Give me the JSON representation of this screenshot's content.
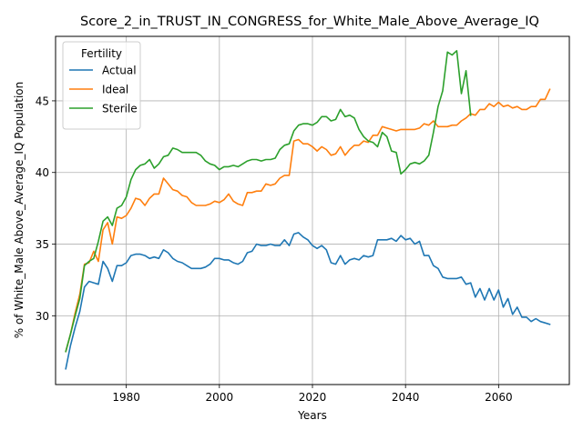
{
  "chart_data": {
    "type": "line",
    "title": "Score_2_in_TRUST_IN_CONGRESS_for_White_Male_Above_Average_IQ",
    "xlabel": "Years",
    "ylabel": "% of White_Male Above_Average_IQ Population",
    "xlim": [
      1964.8,
      2075.2
    ],
    "ylim": [
      25.2,
      49.5
    ],
    "x_ticks": [
      1980,
      2000,
      2020,
      2040,
      2060
    ],
    "y_ticks": [
      30,
      35,
      40,
      45
    ],
    "x_tick_labels": [
      "1980",
      "2000",
      "2020",
      "2040",
      "2060"
    ],
    "y_tick_labels": [
      "30",
      "35",
      "40",
      "45"
    ],
    "grid": true,
    "legend": {
      "title": "Fertility",
      "position": "top-left"
    },
    "series": [
      {
        "name": "Actual",
        "color": "#1f77b4",
        "points": [
          [
            1967,
            26.3
          ],
          [
            1968,
            27.9
          ],
          [
            1969,
            29.2
          ],
          [
            1970,
            30.3
          ],
          [
            1971,
            32.0
          ],
          [
            1972,
            32.4
          ],
          [
            1973,
            32.3
          ],
          [
            1974,
            32.2
          ],
          [
            1975,
            33.8
          ],
          [
            1976,
            33.3
          ],
          [
            1977,
            32.4
          ],
          [
            1978,
            33.5
          ],
          [
            1979,
            33.5
          ],
          [
            1980,
            33.7
          ],
          [
            1981,
            34.2
          ],
          [
            1982,
            34.3
          ],
          [
            1983,
            34.3
          ],
          [
            1984,
            34.2
          ],
          [
            1985,
            34.0
          ],
          [
            1986,
            34.1
          ],
          [
            1987,
            34.0
          ],
          [
            1988,
            34.6
          ],
          [
            1989,
            34.4
          ],
          [
            1990,
            34.0
          ],
          [
            1991,
            33.8
          ],
          [
            1992,
            33.7
          ],
          [
            1993,
            33.5
          ],
          [
            1994,
            33.3
          ],
          [
            1995,
            33.3
          ],
          [
            1996,
            33.3
          ],
          [
            1997,
            33.4
          ],
          [
            1998,
            33.6
          ],
          [
            1999,
            34.0
          ],
          [
            2000,
            34.0
          ],
          [
            2001,
            33.9
          ],
          [
            2002,
            33.9
          ],
          [
            2003,
            33.7
          ],
          [
            2004,
            33.6
          ],
          [
            2005,
            33.8
          ],
          [
            2006,
            34.4
          ],
          [
            2007,
            34.5
          ],
          [
            2008,
            35.0
          ],
          [
            2009,
            34.9
          ],
          [
            2010,
            34.9
          ],
          [
            2011,
            35.0
          ],
          [
            2012,
            34.9
          ],
          [
            2013,
            34.9
          ],
          [
            2014,
            35.3
          ],
          [
            2015,
            34.9
          ],
          [
            2016,
            35.7
          ],
          [
            2017,
            35.8
          ],
          [
            2018,
            35.5
          ],
          [
            2019,
            35.3
          ],
          [
            2020,
            34.9
          ],
          [
            2021,
            34.7
          ],
          [
            2022,
            34.9
          ],
          [
            2023,
            34.6
          ],
          [
            2024,
            33.7
          ],
          [
            2025,
            33.6
          ],
          [
            2026,
            34.2
          ],
          [
            2027,
            33.6
          ],
          [
            2028,
            33.9
          ],
          [
            2029,
            34.0
          ],
          [
            2030,
            33.9
          ],
          [
            2031,
            34.2
          ],
          [
            2032,
            34.1
          ],
          [
            2033,
            34.2
          ],
          [
            2034,
            35.3
          ],
          [
            2035,
            35.3
          ],
          [
            2036,
            35.3
          ],
          [
            2037,
            35.4
          ],
          [
            2038,
            35.2
          ],
          [
            2039,
            35.6
          ],
          [
            2040,
            35.3
          ],
          [
            2041,
            35.4
          ],
          [
            2042,
            35.0
          ],
          [
            2043,
            35.2
          ],
          [
            2044,
            34.2
          ],
          [
            2045,
            34.2
          ],
          [
            2046,
            33.5
          ],
          [
            2047,
            33.3
          ],
          [
            2048,
            32.7
          ],
          [
            2049,
            32.6
          ],
          [
            2050,
            32.6
          ],
          [
            2051,
            32.6
          ],
          [
            2052,
            32.7
          ],
          [
            2053,
            32.2
          ],
          [
            2054,
            32.3
          ],
          [
            2055,
            31.3
          ],
          [
            2056,
            31.9
          ],
          [
            2057,
            31.1
          ],
          [
            2058,
            31.9
          ],
          [
            2059,
            31.1
          ],
          [
            2060,
            31.8
          ],
          [
            2061,
            30.6
          ],
          [
            2062,
            31.2
          ],
          [
            2063,
            30.1
          ],
          [
            2064,
            30.6
          ],
          [
            2065,
            29.9
          ],
          [
            2066,
            29.9
          ],
          [
            2067,
            29.6
          ],
          [
            2068,
            29.8
          ],
          [
            2069,
            29.6
          ],
          [
            2070,
            29.5
          ],
          [
            2071,
            29.4
          ]
        ]
      },
      {
        "name": "Ideal",
        "color": "#ff7f0e",
        "points": [
          [
            1967,
            27.5
          ],
          [
            1968,
            28.7
          ],
          [
            1969,
            30.2
          ],
          [
            1970,
            31.5
          ],
          [
            1971,
            33.6
          ],
          [
            1972,
            33.7
          ],
          [
            1973,
            34.5
          ],
          [
            1974,
            33.8
          ],
          [
            1975,
            36.0
          ],
          [
            1976,
            36.5
          ],
          [
            1977,
            35.0
          ],
          [
            1978,
            36.9
          ],
          [
            1979,
            36.8
          ],
          [
            1980,
            37.0
          ],
          [
            1981,
            37.5
          ],
          [
            1982,
            38.2
          ],
          [
            1983,
            38.1
          ],
          [
            1984,
            37.7
          ],
          [
            1985,
            38.2
          ],
          [
            1986,
            38.5
          ],
          [
            1987,
            38.5
          ],
          [
            1988,
            39.6
          ],
          [
            1989,
            39.2
          ],
          [
            1990,
            38.8
          ],
          [
            1991,
            38.7
          ],
          [
            1992,
            38.4
          ],
          [
            1993,
            38.3
          ],
          [
            1994,
            37.9
          ],
          [
            1995,
            37.7
          ],
          [
            1996,
            37.7
          ],
          [
            1997,
            37.7
          ],
          [
            1998,
            37.8
          ],
          [
            1999,
            38.0
          ],
          [
            2000,
            37.9
          ],
          [
            2001,
            38.1
          ],
          [
            2002,
            38.5
          ],
          [
            2003,
            38.0
          ],
          [
            2004,
            37.8
          ],
          [
            2005,
            37.7
          ],
          [
            2006,
            38.6
          ],
          [
            2007,
            38.6
          ],
          [
            2008,
            38.7
          ],
          [
            2009,
            38.7
          ],
          [
            2010,
            39.2
          ],
          [
            2011,
            39.1
          ],
          [
            2012,
            39.2
          ],
          [
            2013,
            39.6
          ],
          [
            2014,
            39.8
          ],
          [
            2015,
            39.8
          ],
          [
            2016,
            42.2
          ],
          [
            2017,
            42.3
          ],
          [
            2018,
            42.0
          ],
          [
            2019,
            42.0
          ],
          [
            2020,
            41.8
          ],
          [
            2021,
            41.5
          ],
          [
            2022,
            41.8
          ],
          [
            2023,
            41.6
          ],
          [
            2024,
            41.2
          ],
          [
            2025,
            41.3
          ],
          [
            2026,
            41.8
          ],
          [
            2027,
            41.2
          ],
          [
            2028,
            41.6
          ],
          [
            2029,
            41.9
          ],
          [
            2030,
            41.9
          ],
          [
            2031,
            42.2
          ],
          [
            2032,
            42.1
          ],
          [
            2033,
            42.6
          ],
          [
            2034,
            42.6
          ],
          [
            2035,
            43.2
          ],
          [
            2036,
            43.1
          ],
          [
            2037,
            43.0
          ],
          [
            2038,
            42.9
          ],
          [
            2039,
            43.0
          ],
          [
            2040,
            43.0
          ],
          [
            2041,
            43.0
          ],
          [
            2042,
            43.0
          ],
          [
            2043,
            43.1
          ],
          [
            2044,
            43.4
          ],
          [
            2045,
            43.3
          ],
          [
            2046,
            43.6
          ],
          [
            2047,
            43.2
          ],
          [
            2048,
            43.2
          ],
          [
            2049,
            43.2
          ],
          [
            2050,
            43.3
          ],
          [
            2051,
            43.3
          ],
          [
            2052,
            43.6
          ],
          [
            2053,
            43.8
          ],
          [
            2054,
            44.1
          ],
          [
            2055,
            44.0
          ],
          [
            2056,
            44.4
          ],
          [
            2057,
            44.4
          ],
          [
            2058,
            44.8
          ],
          [
            2059,
            44.6
          ],
          [
            2060,
            44.9
          ],
          [
            2061,
            44.6
          ],
          [
            2062,
            44.7
          ],
          [
            2063,
            44.5
          ],
          [
            2064,
            44.6
          ],
          [
            2065,
            44.4
          ],
          [
            2066,
            44.4
          ],
          [
            2067,
            44.6
          ],
          [
            2068,
            44.6
          ],
          [
            2069,
            45.1
          ],
          [
            2070,
            45.1
          ],
          [
            2071,
            45.8
          ]
        ]
      },
      {
        "name": "Sterile",
        "color": "#2ca02c",
        "points": [
          [
            1967,
            27.5
          ],
          [
            1968,
            28.7
          ],
          [
            1969,
            30.0
          ],
          [
            1970,
            31.2
          ],
          [
            1971,
            33.5
          ],
          [
            1972,
            33.8
          ],
          [
            1973,
            34.0
          ],
          [
            1974,
            35.2
          ],
          [
            1975,
            36.6
          ],
          [
            1976,
            36.9
          ],
          [
            1977,
            36.3
          ],
          [
            1978,
            37.5
          ],
          [
            1979,
            37.7
          ],
          [
            1980,
            38.3
          ],
          [
            1981,
            39.5
          ],
          [
            1982,
            40.2
          ],
          [
            1983,
            40.5
          ],
          [
            1984,
            40.6
          ],
          [
            1985,
            40.9
          ],
          [
            1986,
            40.3
          ],
          [
            1987,
            40.6
          ],
          [
            1988,
            41.1
          ],
          [
            1989,
            41.2
          ],
          [
            1990,
            41.7
          ],
          [
            1991,
            41.6
          ],
          [
            1992,
            41.4
          ],
          [
            1993,
            41.4
          ],
          [
            1994,
            41.4
          ],
          [
            1995,
            41.4
          ],
          [
            1996,
            41.2
          ],
          [
            1997,
            40.8
          ],
          [
            1998,
            40.6
          ],
          [
            1999,
            40.5
          ],
          [
            2000,
            40.2
          ],
          [
            2001,
            40.4
          ],
          [
            2002,
            40.4
          ],
          [
            2003,
            40.5
          ],
          [
            2004,
            40.4
          ],
          [
            2005,
            40.6
          ],
          [
            2006,
            40.8
          ],
          [
            2007,
            40.9
          ],
          [
            2008,
            40.9
          ],
          [
            2009,
            40.8
          ],
          [
            2010,
            40.9
          ],
          [
            2011,
            40.9
          ],
          [
            2012,
            41.0
          ],
          [
            2013,
            41.6
          ],
          [
            2014,
            41.9
          ],
          [
            2015,
            42.0
          ],
          [
            2016,
            42.9
          ],
          [
            2017,
            43.3
          ],
          [
            2018,
            43.4
          ],
          [
            2019,
            43.4
          ],
          [
            2020,
            43.3
          ],
          [
            2021,
            43.5
          ],
          [
            2022,
            43.9
          ],
          [
            2023,
            43.9
          ],
          [
            2024,
            43.6
          ],
          [
            2025,
            43.7
          ],
          [
            2026,
            44.4
          ],
          [
            2027,
            43.9
          ],
          [
            2028,
            44.0
          ],
          [
            2029,
            43.8
          ],
          [
            2030,
            43.0
          ],
          [
            2031,
            42.5
          ],
          [
            2032,
            42.2
          ],
          [
            2033,
            42.1
          ],
          [
            2034,
            41.8
          ],
          [
            2035,
            42.8
          ],
          [
            2036,
            42.5
          ],
          [
            2037,
            41.5
          ],
          [
            2038,
            41.4
          ],
          [
            2039,
            39.9
          ],
          [
            2040,
            40.2
          ],
          [
            2041,
            40.6
          ],
          [
            2042,
            40.7
          ],
          [
            2043,
            40.6
          ],
          [
            2044,
            40.8
          ],
          [
            2045,
            41.2
          ],
          [
            2046,
            42.8
          ],
          [
            2047,
            44.6
          ],
          [
            2048,
            45.7
          ],
          [
            2049,
            48.4
          ],
          [
            2050,
            48.2
          ],
          [
            2051,
            48.5
          ],
          [
            2052,
            45.5
          ],
          [
            2053,
            47.1
          ],
          [
            2054,
            44.0
          ]
        ]
      }
    ]
  }
}
